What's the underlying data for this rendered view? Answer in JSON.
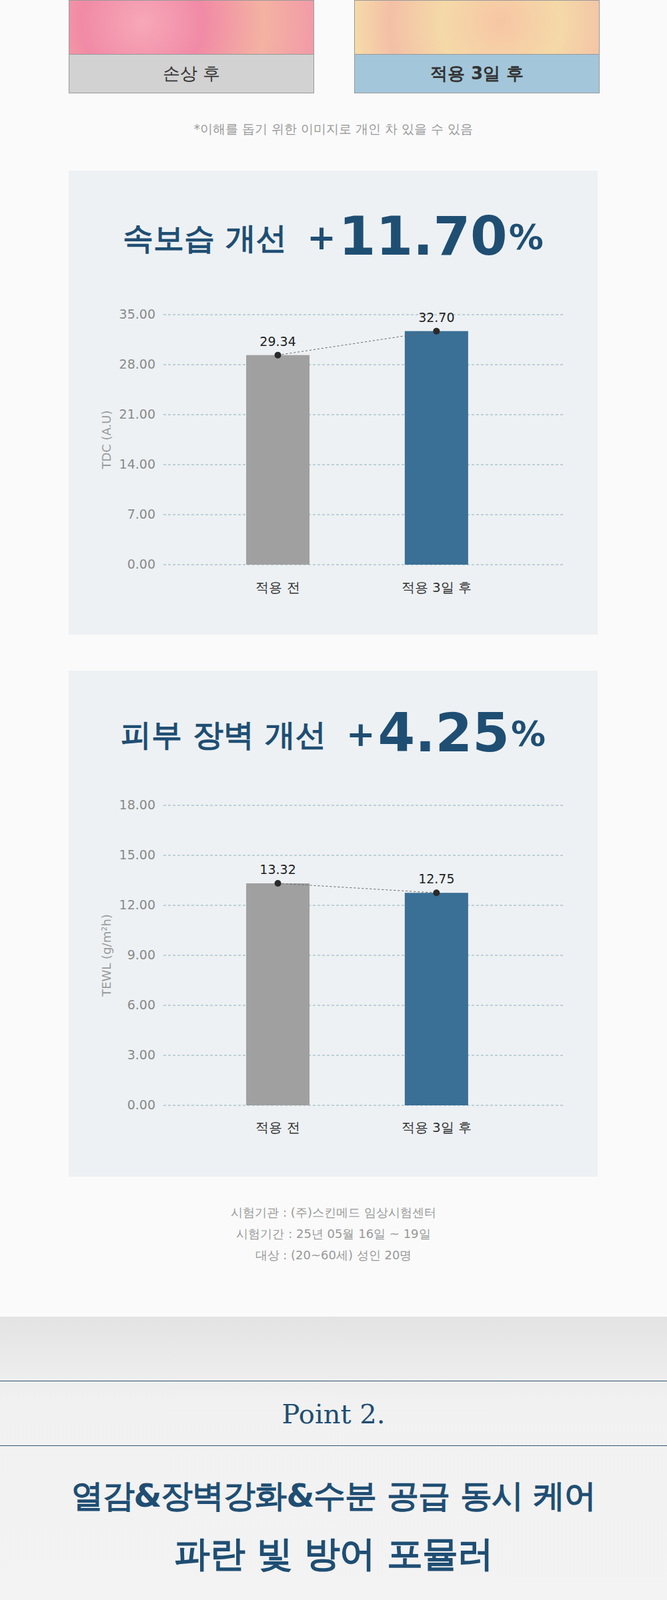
{
  "image_labels": [
    "손상 후",
    "적용 3일 후"
  ],
  "note": "*이해를 돕기 위한 이미지로 개인 차 있을 수 있음",
  "chart_data": [
    {
      "type": "bar",
      "title": "속보습 개선",
      "annotation": "+11.70%",
      "y_label": "TDC (A.U)",
      "categories": [
        "적용 전",
        "적용 3일 후"
      ],
      "values": [
        29.34,
        32.7
      ],
      "value_labels": [
        "29.34",
        "32.70"
      ],
      "colors": [
        "#a0a0a0",
        "#3a6f96"
      ],
      "ylim": [
        0,
        35
      ],
      "yticks": [
        {
          "value": 0,
          "label": "0.00"
        },
        {
          "value": 7,
          "label": "7.00"
        },
        {
          "value": 14,
          "label": "14.00"
        },
        {
          "value": 21,
          "label": "21.00"
        },
        {
          "value": 28,
          "label": "28.00"
        },
        {
          "value": 35,
          "label": "35.00"
        }
      ],
      "grid": true,
      "data_labels": true
    },
    {
      "type": "bar",
      "title": "피부 장벽 개선",
      "annotation": "+4.25%",
      "y_label": "TEWL (g/m²h)",
      "categories": [
        "적용 전",
        "적용 3일 후"
      ],
      "values": [
        13.32,
        12.75
      ],
      "value_labels": [
        "13.32",
        "12.75"
      ],
      "colors": [
        "#a0a0a0",
        "#3a6f96"
      ],
      "ylim": [
        0,
        18
      ],
      "yticks": [
        {
          "value": 0,
          "label": "0.00"
        },
        {
          "value": 3,
          "label": "3.00"
        },
        {
          "value": 6,
          "label": "6.00"
        },
        {
          "value": 9,
          "label": "9.00"
        },
        {
          "value": 12,
          "label": "12.00"
        },
        {
          "value": 15,
          "label": "15.00"
        },
        {
          "value": 18,
          "label": "18.00"
        }
      ],
      "grid": true,
      "data_labels": true
    }
  ],
  "footer": [
    "시험기관 : (주)스킨메드 임상시험센터",
    "시험기간 : 25년 05월 16일 ~ 19일",
    "대상 : (20~60세) 성인 20명"
  ],
  "point": {
    "label": "Point 2.",
    "headline": [
      "열감&장벽강화&수분 공급 동시 케어",
      "파란 빛 방어 포뮬러"
    ]
  }
}
